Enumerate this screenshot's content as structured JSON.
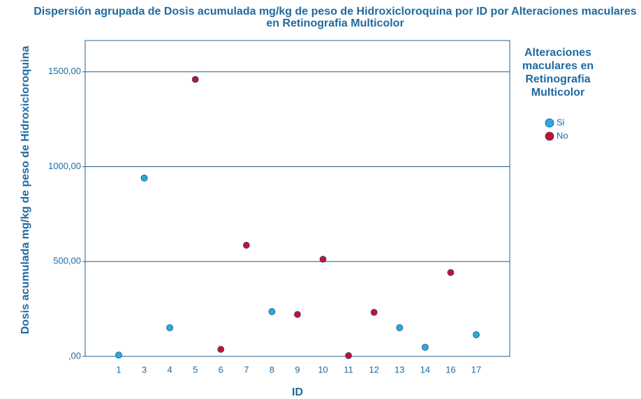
{
  "chart_data": {
    "type": "scatter",
    "title": "Dispersión agrupada de Dosis acumulada mg/kg de peso de Hidroxicloroquina por ID por Alteraciones maculares en Retinografia Multicolor",
    "x_label": "ID",
    "y_label": "Dosis acumulada mg/kg de peso de Hidroxicloroquina",
    "legend_title": "Alteraciones maculares en Retinografia Multicolor",
    "categories": [
      "1",
      "3",
      "4",
      "5",
      "6",
      "7",
      "8",
      "9",
      "10",
      "11",
      "12",
      "13",
      "14",
      "16",
      "17"
    ],
    "series": [
      {
        "name": "Si",
        "color": "#29a9e1",
        "values": [
          7,
          940,
          151,
          null,
          null,
          null,
          236,
          null,
          null,
          null,
          null,
          151,
          48,
          null,
          114
        ]
      },
      {
        "name": "No",
        "color": "#c8102e",
        "values": [
          null,
          null,
          null,
          1460,
          37,
          586,
          null,
          221,
          512,
          4,
          232,
          null,
          null,
          442,
          null
        ]
      }
    ],
    "ylim": [
      0,
      1665
    ],
    "yticks": [
      {
        "value": 0,
        "label": ",00"
      },
      {
        "value": 500,
        "label": "500,00"
      },
      {
        "value": 1000,
        "label": "1000,00"
      },
      {
        "value": 1500,
        "label": "1500,00"
      }
    ],
    "grid": true,
    "legend": "right"
  }
}
